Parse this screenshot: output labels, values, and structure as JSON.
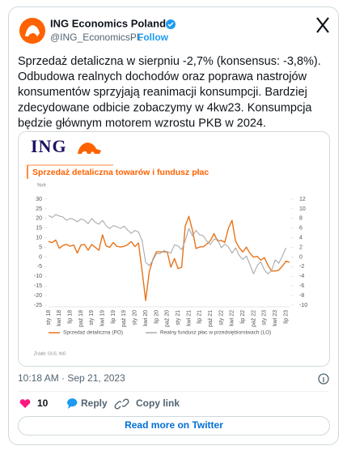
{
  "header": {
    "name": "ING Economics Poland",
    "handle": "@ING_EconomicsPL",
    "separator": "·",
    "follow": "Follow"
  },
  "text_lines": [
    "Sprzedaż detaliczna w sierpniu -2,7% (konsensus: -3,8%).",
    "Odbudowa realnych dochodów oraz poprawa nastrojów",
    "konsumentów sprzyjają reanimacji konsumpcji. Bardziej",
    "zdecydowane odbicie zobaczymy w 4kw23. Konsumpcja",
    "będzie głównym motorem wzrostu PKB w 2024."
  ],
  "chart_data": {
    "type": "line",
    "logo": "ING",
    "title": "Sprzedaż detaliczna towarów i fundusz płac",
    "ylabel": "%r/r",
    "categories": [
      "sty 18",
      null,
      null,
      "kwi 18",
      null,
      null,
      "lip 18",
      null,
      null,
      "paź 18",
      null,
      null,
      "sty 19",
      null,
      null,
      "kwi 19",
      null,
      null,
      "lip 19",
      null,
      null,
      "paź 19",
      null,
      null,
      "sty 20",
      null,
      null,
      "kwi 20",
      null,
      null,
      "lip 20",
      null,
      null,
      "paź 20",
      null,
      null,
      "sty 21",
      null,
      null,
      "kwi 21",
      null,
      null,
      "lip 21",
      null,
      null,
      "paź 21",
      null,
      null,
      "sty 22",
      null,
      null,
      "kwi 22",
      null,
      null,
      "lip 22",
      null,
      null,
      "paź 22",
      null,
      null,
      "sty 23",
      null,
      null,
      "kwi 23",
      null,
      null,
      "lip 23",
      null
    ],
    "series": [
      {
        "name": "Sprzedaż detaliczna (PO)",
        "color": "#e8731a",
        "values": [
          8,
          7.5,
          8.8,
          4.5,
          6,
          6.5,
          5.6,
          6.2,
          2,
          6.2,
          6.5,
          3.5,
          6.5,
          5,
          3.5,
          11.5,
          5.8,
          5,
          7.5,
          5.5,
          5.2,
          5.5,
          6.4,
          8,
          5.4,
          7.3,
          -7,
          -22.6,
          -7.7,
          -1.3,
          2.7,
          2.7,
          2.7,
          2.6,
          -5.3,
          -0.8,
          -6,
          -5.3,
          16,
          21.1,
          13.9,
          4.4,
          5.2,
          5.3,
          6.7,
          8.5,
          12.1,
          8.3,
          8.6,
          7.6,
          14.9,
          19,
          8.2,
          4.8,
          2.6,
          5.1,
          1.9,
          -0.1,
          0.3,
          -1.6,
          -0.3,
          -4.3,
          -7.3,
          -7.3,
          -6.8,
          -4.7,
          -2.2,
          -2.7
        ]
      },
      {
        "name": "Realny fundusz płac w przedsiębiorstwach (LO)",
        "color": "#aaaaaa",
        "axis": "y2",
        "values": [
          8.6,
          8.2,
          8.8,
          8.5,
          8.3,
          7.6,
          8,
          7.8,
          7.3,
          7.9,
          7.6,
          6.9,
          8,
          7.2,
          6.8,
          7.6,
          6.5,
          5.9,
          6.5,
          6.3,
          5.9,
          6.4,
          5.6,
          4.9,
          5.5,
          5.2,
          3.4,
          -1.1,
          -1.8,
          -0.7,
          0.7,
          0.7,
          1.3,
          1.1,
          0.8,
          2.5,
          2.3,
          1.5,
          3.4,
          5.9,
          4.4,
          5.5,
          4.6,
          4.4,
          3.3,
          2.6,
          3.7,
          3.7,
          1.9,
          2.7,
          2.1,
          0.8,
          1.9,
          0.3,
          -0.5,
          0.2,
          -1.6,
          -3.5,
          -1.8,
          -1,
          -2.7,
          -3.5,
          -2.8,
          -0.6,
          -1.3,
          0.2,
          1.9,
          null
        ]
      }
    ],
    "ylim": [
      -25,
      30
    ],
    "yticks": [
      -25,
      -20,
      -15,
      -10,
      -5,
      0,
      5,
      10,
      15,
      20,
      25,
      30
    ],
    "y2lim": [
      -10,
      12
    ],
    "y2ticks": [
      -10,
      -8,
      -6,
      -4,
      -2,
      0,
      2,
      4,
      6,
      8,
      10,
      12
    ],
    "source": "Źródło: GUS, ING"
  },
  "timestamp": "10:18 AM · Sep 21, 2023",
  "actions": {
    "likes": 10,
    "reply": "Reply",
    "copy_link": "Copy link"
  },
  "button": "Read more on Twitter"
}
